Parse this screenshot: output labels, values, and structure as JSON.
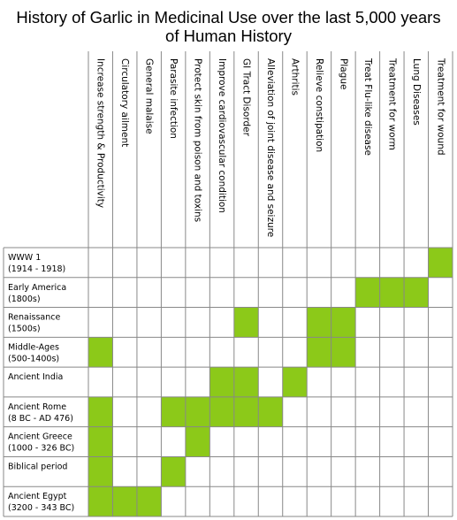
{
  "chart_data": {
    "type": "heatmap",
    "title": "History of Garlic in Medicinal Use over the last 5,000 years of Human History",
    "title_lines": [
      "History of Garlic in Medicinal Use over the last 5,000 years",
      "of Human History"
    ],
    "fill_color": "#8cc919",
    "grid_color": "#888888",
    "columns": [
      "Increase strength & Productivity",
      "Circulatory ailment",
      "General malaise",
      "Parasite infection",
      "Protect skin from poison and toxins",
      "Improve cardiovascular condition",
      "GI Tract Disorder",
      "Alleviation of joint disease and seizure",
      "Arthritis",
      "Relieve constipation",
      "Plague",
      "Treat Flu-like disease",
      "Treatment for worm",
      "Lung Diseases",
      "Treatment for wound"
    ],
    "rows": [
      {
        "label": "WWW 1",
        "sublabel": "(1914 - 1918)",
        "filled": [
          14
        ]
      },
      {
        "label": "Early America",
        "sublabel": "(1800s)",
        "filled": [
          11,
          12,
          13
        ]
      },
      {
        "label": "Renaissance",
        "sublabel": "(1500s)",
        "filled": [
          6,
          9,
          10
        ]
      },
      {
        "label": "Middle-Ages",
        "sublabel": "(500-1400s)",
        "filled": [
          0,
          9,
          10
        ]
      },
      {
        "label": "Ancient India",
        "sublabel": "",
        "filled": [
          5,
          6,
          8
        ]
      },
      {
        "label": "Ancient Rome",
        "sublabel": "(8 BC - AD 476)",
        "filled": [
          0,
          3,
          4,
          5,
          6,
          7
        ]
      },
      {
        "label": "Ancient Greece",
        "sublabel": "(1000 - 326 BC)",
        "filled": [
          0,
          4
        ]
      },
      {
        "label": "Biblical period",
        "sublabel": "",
        "filled": [
          0,
          3
        ]
      },
      {
        "label": "Ancient Egypt",
        "sublabel": "(3200 - 343 BC)",
        "filled": [
          0,
          1,
          2
        ]
      }
    ]
  }
}
